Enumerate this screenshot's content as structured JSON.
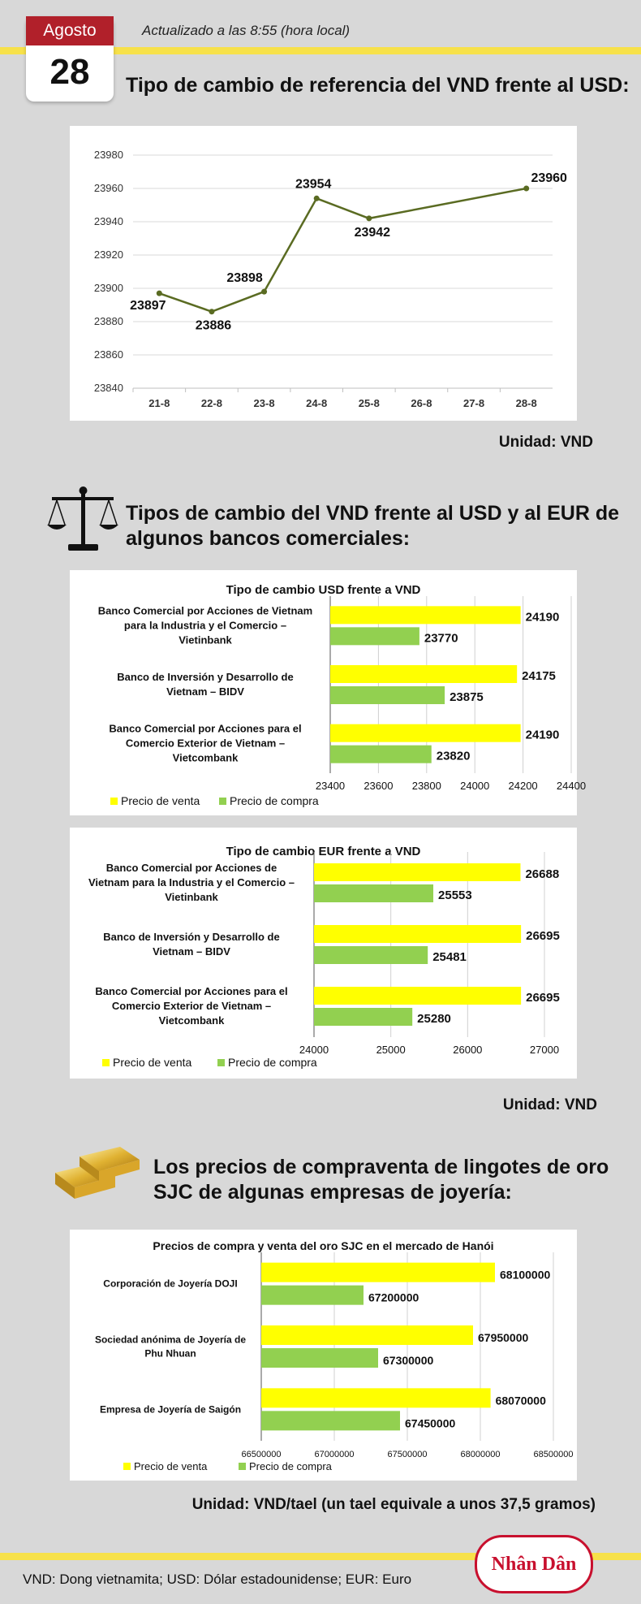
{
  "header": {
    "month": "Agosto",
    "day": "28",
    "updated": "Actualizado a las 8:55 (hora local)"
  },
  "section1": {
    "heading": "Tipo de cambio de referencia del VND frente al USD:",
    "unit": "Unidad: VND"
  },
  "section2": {
    "heading_line1": "Tipos de cambio del VND frente al USD y al EUR de",
    "heading_line2": "algunos bancos comerciales:",
    "unit": "Unidad: VND"
  },
  "section3": {
    "heading_line1": "Los precios de compraventa de lingotes de oro",
    "heading_line2": "SJC de algunas empresas de joyería:",
    "unit": "Unidad: VND/tael (un tael equivale a unos 37,5 gramos)"
  },
  "footer": {
    "note": "VND: Dong vietnamita; USD: Dólar estadounidense; EUR: Euro",
    "logo": "Nhân Dân"
  },
  "colors": {
    "sell": "#ffff00",
    "buy": "#92d050",
    "line": "#5a6b22",
    "stripe": "#f7e14a",
    "calendar_red": "#b1202a"
  },
  "chart_data": [
    {
      "type": "line",
      "title": "",
      "categories": [
        "21-8",
        "22-8",
        "23-8",
        "24-8",
        "25-8",
        "26-8",
        "27-8",
        "28-8"
      ],
      "series": [
        {
          "name": "",
          "values": [
            23897,
            23886,
            23898,
            23954,
            23942,
            null,
            null,
            23960
          ]
        }
      ],
      "data_labels": [
        "23897",
        "23886",
        "23898",
        "23954",
        "23942",
        "",
        "",
        "23960"
      ],
      "yticks": [
        23840,
        23860,
        23880,
        23900,
        23920,
        23940,
        23960,
        23980
      ],
      "ylim": [
        23840,
        23980
      ],
      "grid": true
    },
    {
      "type": "bar",
      "orientation": "horizontal",
      "title": "Tipo de cambio USD frente a VND",
      "categories": [
        [
          "Banco Comercial por Acciones de Vietnam",
          "para la Industria y el Comercio –",
          "Vietinbank"
        ],
        [
          "Banco de Inversión y Desarrollo de",
          "Vietnam – BIDV"
        ],
        [
          "Banco Comercial por Acciones para el",
          "Comercio Exterior de Vietnam –",
          "Vietcombank"
        ]
      ],
      "series": [
        {
          "name": "Precio de venta",
          "values": [
            24190,
            24175,
            24190
          ]
        },
        {
          "name": "Precio de compra",
          "values": [
            23770,
            23875,
            23820
          ]
        }
      ],
      "xlim": [
        23400,
        24400
      ],
      "xticks": [
        23400,
        23600,
        23800,
        24000,
        24200,
        24400
      ],
      "legend": "bottom-left"
    },
    {
      "type": "bar",
      "orientation": "horizontal",
      "title": "Tipo de cambio EUR frente a VND",
      "categories": [
        [
          "Banco Comercial por Acciones de",
          "Vietnam para la Industria y el Comercio –",
          "Vietinbank"
        ],
        [
          "Banco de Inversión y Desarrollo de",
          "Vietnam – BIDV"
        ],
        [
          "Banco Comercial por Acciones para el",
          "Comercio Exterior de Vietnam –",
          "Vietcombank"
        ]
      ],
      "series": [
        {
          "name": "Precio de venta",
          "values": [
            26688,
            26695,
            26695
          ]
        },
        {
          "name": "Precio de compra",
          "values": [
            25553,
            25481,
            25280
          ]
        }
      ],
      "xlim": [
        24000,
        27000
      ],
      "xticks": [
        24000,
        25000,
        26000,
        27000
      ],
      "legend": "bottom-left"
    },
    {
      "type": "bar",
      "orientation": "horizontal",
      "title": "Precios de compra y venta del oro SJC en el mercado de Hanói",
      "categories": [
        [
          "Corporación de Joyería DOJI"
        ],
        [
          "Sociedad anónima de Joyería de",
          "Phu Nhuan"
        ],
        [
          "Empresa de Joyería de Saigón"
        ]
      ],
      "series": [
        {
          "name": "Precio de venta",
          "values": [
            68100000,
            67950000,
            68070000
          ]
        },
        {
          "name": "Precio de compra",
          "values": [
            67200000,
            67300000,
            67450000
          ]
        }
      ],
      "xlim": [
        66500000,
        68500000
      ],
      "xticks": [
        66500000,
        67000000,
        67500000,
        68000000,
        68500000
      ],
      "legend": "bottom-left"
    }
  ]
}
